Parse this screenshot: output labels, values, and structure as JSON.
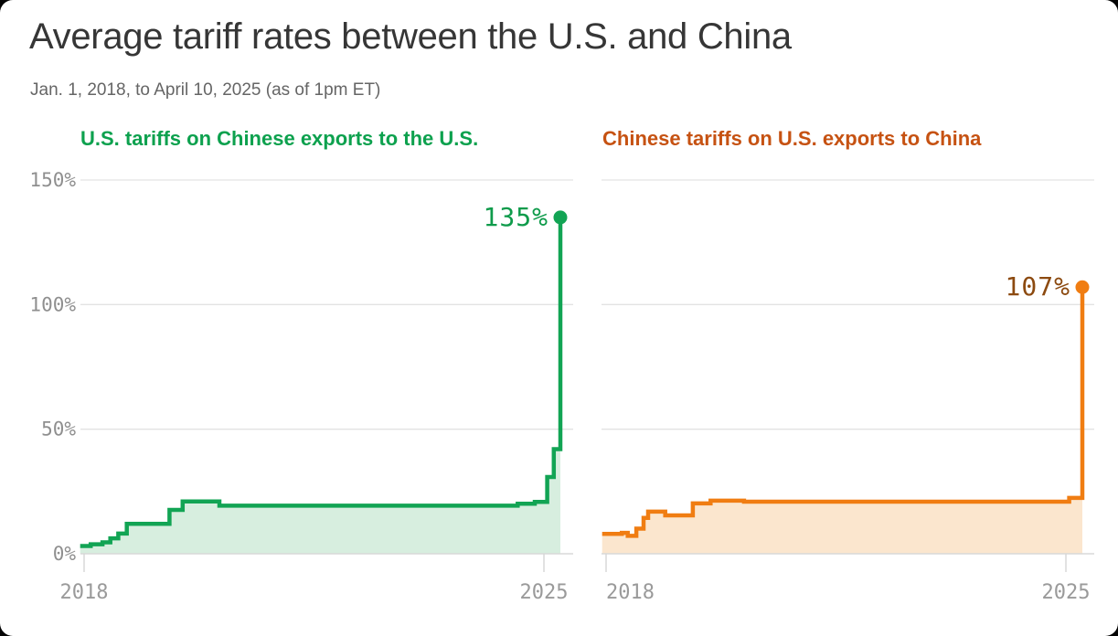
{
  "header": {
    "title": "Average tariff rates between the U.S. and China",
    "subtitle": "Jan. 1, 2018, to April 10, 2025 (as of 1pm ET)"
  },
  "chart_data": [
    {
      "type": "area",
      "title": "U.S. tariffs on Chinese exports to the U.S.",
      "title_color": "#0DA14E",
      "line_color": "#12A454",
      "fill_color": "#D7EEDF",
      "end_label": "135%",
      "end_value": 135,
      "end_label_color": "#0F9B4B",
      "ylim": [
        0,
        150
      ],
      "xlim": [
        2017.94,
        2025.45
      ],
      "grid": true,
      "legend": "none",
      "show_y_tick_labels": true,
      "y_ticks": [
        {
          "value": 0,
          "label": "0%"
        },
        {
          "value": 50,
          "label": "50%"
        },
        {
          "value": 100,
          "label": "100%"
        },
        {
          "value": 150,
          "label": "150%"
        }
      ],
      "x_ticks": [
        {
          "t": 2018,
          "label": "2018",
          "anchor": "middle"
        },
        {
          "t": 2025,
          "label": "2025",
          "anchor": "middle"
        }
      ],
      "points": [
        [
          2017.94,
          3.1
        ],
        [
          2018.1,
          3.8
        ],
        [
          2018.28,
          4.6
        ],
        [
          2018.4,
          6.2
        ],
        [
          2018.52,
          8.1
        ],
        [
          2018.65,
          12.0
        ],
        [
          2019.3,
          17.6
        ],
        [
          2019.5,
          21.0
        ],
        [
          2020.06,
          19.3
        ],
        [
          2024.6,
          20.1
        ],
        [
          2024.86,
          20.8
        ],
        [
          2025.05,
          30.8
        ],
        [
          2025.15,
          42.0
        ],
        [
          2025.25,
          135.0
        ]
      ]
    },
    {
      "type": "area",
      "title": "Chinese tariffs on U.S. exports to China",
      "title_color": "#C65212",
      "line_color": "#F07D12",
      "fill_color": "#FBE6CE",
      "end_label": "107%",
      "end_value": 107,
      "end_label_color": "#8C4A10",
      "ylim": [
        0,
        150
      ],
      "xlim": [
        2017.94,
        2025.45
      ],
      "grid": true,
      "legend": "none",
      "show_y_tick_labels": false,
      "y_ticks": [
        {
          "value": 0,
          "label": "0%"
        },
        {
          "value": 50,
          "label": "50%"
        },
        {
          "value": 100,
          "label": "100%"
        },
        {
          "value": 150,
          "label": "150%"
        }
      ],
      "x_ticks": [
        {
          "t": 2018,
          "label": "2018",
          "anchor": "start"
        },
        {
          "t": 2025,
          "label": "2025",
          "anchor": "middle"
        }
      ],
      "points": [
        [
          2017.94,
          8.0
        ],
        [
          2018.24,
          8.4
        ],
        [
          2018.33,
          7.2
        ],
        [
          2018.46,
          10.1
        ],
        [
          2018.57,
          14.4
        ],
        [
          2018.64,
          16.9
        ],
        [
          2018.9,
          15.4
        ],
        [
          2019.32,
          20.2
        ],
        [
          2019.59,
          21.3
        ],
        [
          2020.1,
          20.9
        ],
        [
          2025.05,
          22.4
        ],
        [
          2025.25,
          107.0
        ]
      ]
    }
  ]
}
